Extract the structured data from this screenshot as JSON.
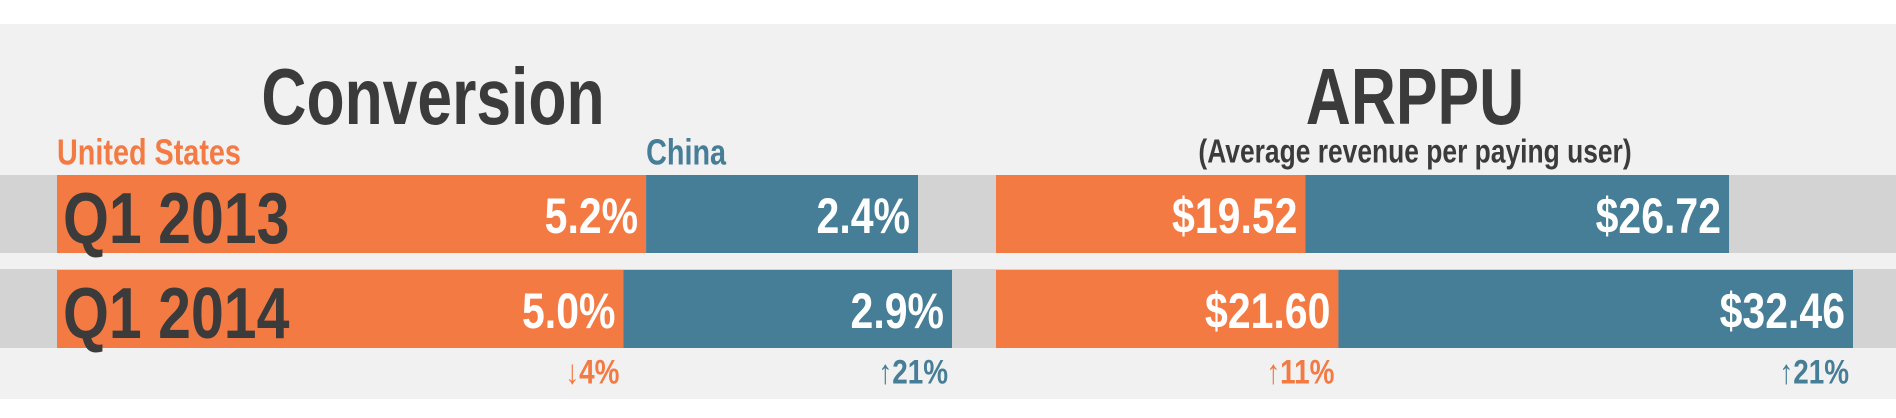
{
  "chart_data": [
    {
      "type": "bar",
      "stacked": true,
      "orientation": "horizontal",
      "title": "Conversion",
      "categories": [
        "Q1 2013",
        "Q1 2014"
      ],
      "series": [
        {
          "name": "United States",
          "color": "#f47a44",
          "values": [
            5.2,
            5.0
          ],
          "value_labels": [
            "5.2%",
            "5.0%"
          ],
          "change_label": "↓4%"
        },
        {
          "name": "China",
          "color": "#467d97",
          "values": [
            2.4,
            2.9
          ],
          "value_labels": [
            "2.4%",
            "2.9%"
          ],
          "change_label": "↑21%"
        }
      ]
    },
    {
      "type": "bar",
      "stacked": true,
      "orientation": "horizontal",
      "title": "ARPPU",
      "subtitle": "(Average revenue per paying user)",
      "series": [
        {
          "color": "#f47a44",
          "values": [
            19.52,
            21.6
          ],
          "value_labels": [
            "$19.52",
            "$21.60"
          ],
          "change_label": "↑11%"
        },
        {
          "color": "#467d97",
          "values": [
            26.72,
            32.46
          ],
          "value_labels": [
            "$26.72",
            "$32.46"
          ],
          "change_label": "↑21%"
        }
      ]
    }
  ]
}
